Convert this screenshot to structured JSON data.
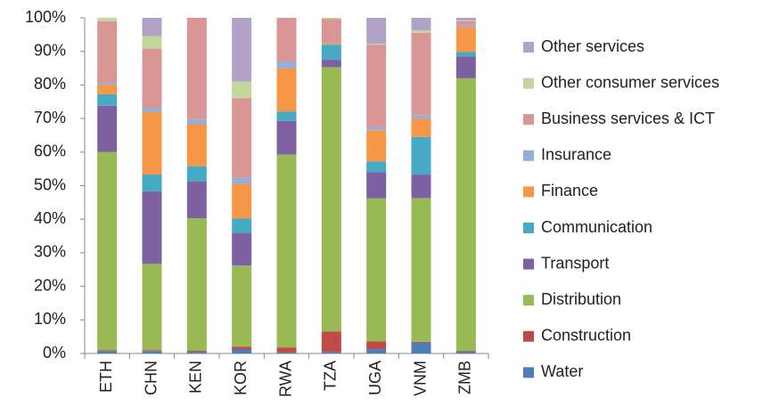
{
  "chart_data": {
    "type": "stacked_bar_100",
    "categories": [
      "ETH",
      "CHN",
      "KEN",
      "KOR",
      "RWA",
      "TZA",
      "UGA",
      "VNM",
      "ZMB"
    ],
    "series": [
      {
        "name": "Water",
        "color": "#4a7ebb",
        "values": [
          0.7,
          0.7,
          0.5,
          1.2,
          0.3,
          0.5,
          1.3,
          3.2,
          0.6
        ]
      },
      {
        "name": "Construction",
        "color": "#be4b48",
        "values": [
          0.3,
          0.3,
          0.3,
          0.8,
          1.5,
          6,
          2.3,
          0.3,
          0.2
        ]
      },
      {
        "name": "Distribution",
        "color": "#98b954",
        "values": [
          59,
          25.7,
          39.5,
          24.2,
          57.5,
          78.8,
          42.6,
          42.8,
          81.2
        ]
      },
      {
        "name": "Transport",
        "color": "#7d60a0",
        "values": [
          13.8,
          21.6,
          11,
          9.8,
          10,
          2.2,
          7.8,
          7,
          6.5
        ]
      },
      {
        "name": "Communication",
        "color": "#46aac5",
        "values": [
          3.4,
          5,
          4.5,
          4.2,
          2.8,
          4.5,
          3.2,
          11.2,
          1.3
        ]
      },
      {
        "name": "Finance",
        "color": "#f79646",
        "values": [
          2.8,
          18.6,
          12.5,
          10.3,
          12.8,
          0.3,
          9.3,
          5.5,
          7.4
        ]
      },
      {
        "name": "Insurance",
        "color": "#94b0d6",
        "values": [
          0.6,
          1.3,
          1.5,
          1.8,
          2.1,
          0.2,
          1,
          1,
          0.5
        ]
      },
      {
        "name": "Business services & ICT",
        "color": "#d99694",
        "values": [
          18.4,
          17.6,
          30.2,
          23.7,
          13,
          7.2,
          24.5,
          24.5,
          1.3
        ]
      },
      {
        "name": "Other consumer services",
        "color": "#c3d69b",
        "values": [
          1,
          3.7,
          0,
          5,
          0,
          0.3,
          0.3,
          0.8,
          0.2
        ]
      },
      {
        "name": "Other services",
        "color": "#b3a2c7",
        "values": [
          0,
          5.5,
          0,
          19,
          0,
          0,
          7.7,
          3.7,
          0.8
        ]
      }
    ],
    "ylim": [
      0,
      100
    ],
    "yticks": [
      {
        "value": 0,
        "label": "0%"
      },
      {
        "value": 10,
        "label": "10%"
      },
      {
        "value": 20,
        "label": "20%"
      },
      {
        "value": 30,
        "label": "30%"
      },
      {
        "value": 40,
        "label": "40%"
      },
      {
        "value": 50,
        "label": "50%"
      },
      {
        "value": 60,
        "label": "60%"
      },
      {
        "value": 70,
        "label": "70%"
      },
      {
        "value": 80,
        "label": "80%"
      },
      {
        "value": 90,
        "label": "90%"
      },
      {
        "value": 100,
        "label": "100%"
      }
    ],
    "grid": false
  }
}
